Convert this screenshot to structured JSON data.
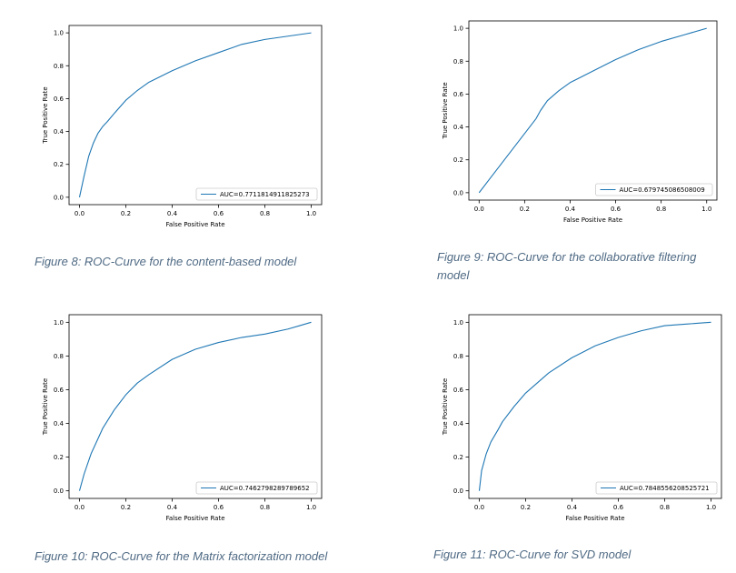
{
  "chart_data": [
    {
      "type": "line",
      "xlabel": "False Positive Rate",
      "ylabel": "True Positive Rate",
      "xlim": [
        0,
        1
      ],
      "ylim": [
        0,
        1
      ],
      "x_ticks": [
        "0.0",
        "0.2",
        "0.4",
        "0.6",
        "0.8",
        "1.0"
      ],
      "y_ticks": [
        "0.0",
        "0.2",
        "0.4",
        "0.6",
        "0.8",
        "1.0"
      ],
      "legend_position": "lower-right",
      "line_color": "#1f77b4",
      "series": [
        {
          "name": "AUC=0.7711814911825273",
          "x": [
            0,
            0.02,
            0.04,
            0.06,
            0.08,
            0.1,
            0.12,
            0.15,
            0.2,
            0.25,
            0.3,
            0.4,
            0.5,
            0.6,
            0.7,
            0.8,
            0.9,
            1.0
          ],
          "y": [
            0,
            0.13,
            0.25,
            0.33,
            0.39,
            0.43,
            0.46,
            0.51,
            0.59,
            0.65,
            0.7,
            0.77,
            0.83,
            0.88,
            0.93,
            0.96,
            0.98,
            1.0
          ]
        }
      ]
    },
    {
      "type": "line",
      "xlabel": "False Positive Rate",
      "ylabel": "True Positive Rate",
      "xlim": [
        0,
        1
      ],
      "ylim": [
        0,
        1
      ],
      "x_ticks": [
        "0.0",
        "0.2",
        "0.4",
        "0.6",
        "0.8",
        "1.0"
      ],
      "y_ticks": [
        "0.0",
        "0.2",
        "0.4",
        "0.6",
        "0.8",
        "1.0"
      ],
      "legend_position": "lower-right",
      "line_color": "#1f77b4",
      "series": [
        {
          "name": "AUC=0.679745086508009",
          "x": [
            0,
            0.05,
            0.1,
            0.15,
            0.2,
            0.25,
            0.27,
            0.3,
            0.35,
            0.4,
            0.5,
            0.6,
            0.7,
            0.8,
            0.9,
            1.0
          ],
          "y": [
            0,
            0.09,
            0.18,
            0.27,
            0.36,
            0.45,
            0.5,
            0.56,
            0.62,
            0.67,
            0.74,
            0.81,
            0.87,
            0.92,
            0.96,
            1.0
          ]
        }
      ]
    },
    {
      "type": "line",
      "xlabel": "False Positive Rate",
      "ylabel": "True Positive Rate",
      "xlim": [
        0,
        1
      ],
      "ylim": [
        0,
        1
      ],
      "x_ticks": [
        "0.0",
        "0.2",
        "0.4",
        "0.6",
        "0.8",
        "1.0"
      ],
      "y_ticks": [
        "0.0",
        "0.2",
        "0.4",
        "0.6",
        "0.8",
        "1.0"
      ],
      "legend_position": "lower-right",
      "line_color": "#1f77b4",
      "series": [
        {
          "name": "AUC=0.7462798289789652",
          "x": [
            0,
            0.02,
            0.05,
            0.08,
            0.1,
            0.15,
            0.2,
            0.25,
            0.3,
            0.4,
            0.5,
            0.6,
            0.7,
            0.8,
            0.9,
            0.95,
            1.0
          ],
          "y": [
            0,
            0.1,
            0.22,
            0.31,
            0.37,
            0.48,
            0.57,
            0.64,
            0.69,
            0.78,
            0.84,
            0.88,
            0.91,
            0.93,
            0.96,
            0.98,
            1.0
          ]
        }
      ]
    },
    {
      "type": "line",
      "xlabel": "False Positive Rate",
      "ylabel": "True Positive Rate",
      "xlim": [
        0,
        1
      ],
      "ylim": [
        0,
        1
      ],
      "x_ticks": [
        "0.0",
        "0.2",
        "0.4",
        "0.6",
        "0.8",
        "1.0"
      ],
      "y_ticks": [
        "0.0",
        "0.2",
        "0.4",
        "0.6",
        "0.8",
        "1.0"
      ],
      "legend_position": "lower-right",
      "line_color": "#1f77b4",
      "series": [
        {
          "name": "AUC=0.7848556208525721",
          "x": [
            0,
            0.01,
            0.03,
            0.05,
            0.08,
            0.1,
            0.15,
            0.2,
            0.3,
            0.4,
            0.5,
            0.6,
            0.7,
            0.8,
            0.9,
            1.0
          ],
          "y": [
            0,
            0.12,
            0.22,
            0.29,
            0.36,
            0.41,
            0.5,
            0.58,
            0.7,
            0.79,
            0.86,
            0.91,
            0.95,
            0.98,
            0.99,
            1.0
          ]
        }
      ]
    }
  ],
  "captions": [
    "Figure 8: ROC-Curve for the content-based model",
    "Figure 9: ROC-Curve for the collaborative filtering model",
    "Figure 10: ROC-Curve for the Matrix factorization model",
    "Figure 11: ROC-Curve for SVD model"
  ]
}
